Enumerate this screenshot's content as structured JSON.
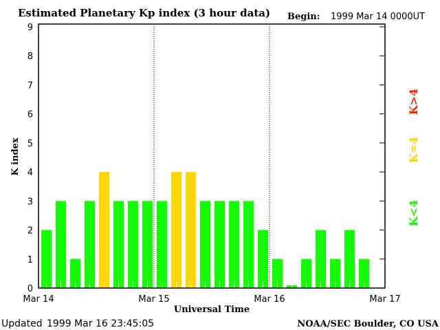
{
  "chart_data": {
    "type": "bar",
    "title": "Estimated Planetary Kp index (3 hour data)",
    "begin_label": "Begin:",
    "begin_value": "1999 Mar 14 0000UT",
    "xlabel": "Universal Time",
    "ylabel": "K index",
    "ylim": [
      0,
      9
    ],
    "yticks": [
      "0",
      "1",
      "2",
      "3",
      "4",
      "5",
      "6",
      "7",
      "8",
      "9"
    ],
    "xticks": [
      "Mar 14",
      "Mar 15",
      "Mar 16",
      "Mar 17"
    ],
    "values": [
      2,
      3,
      1,
      3,
      4,
      3,
      3,
      3,
      3,
      4,
      4,
      3,
      3,
      3,
      3,
      2,
      1,
      0,
      1,
      2,
      1,
      2,
      1
    ],
    "colors": {
      "low": "#11ff00",
      "eq": "#ffd700",
      "high": "#ff2200"
    },
    "legend": [
      "K<4",
      "K=4",
      "K>4"
    ]
  },
  "footer": {
    "updated_label": "Updated",
    "updated_value": "1999 Mar 16 23:45:05",
    "source": "NOAA/SEC Boulder, CO USA"
  }
}
